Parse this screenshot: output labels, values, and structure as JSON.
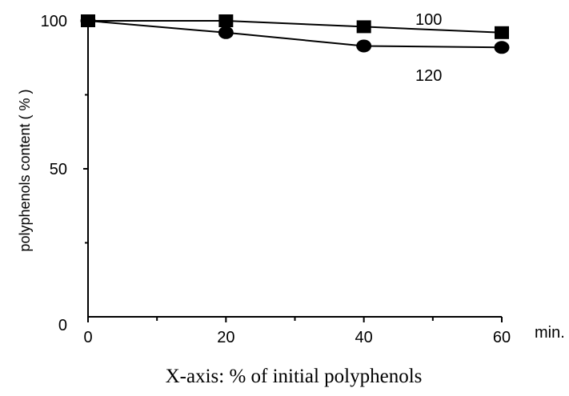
{
  "chart_data": {
    "type": "line",
    "xlabel": "X-axis: % of initial polyphenols",
    "x_unit": "min.",
    "ylabel": "polyphenols content ( % )",
    "x": [
      0,
      20,
      40,
      60
    ],
    "xlim": [
      0,
      60
    ],
    "ylim": [
      0,
      100
    ],
    "x_ticks": [
      "0",
      "20",
      "40",
      "60"
    ],
    "y_ticks": [
      "0",
      "50",
      "100"
    ],
    "series": [
      {
        "name": "100",
        "marker": "square",
        "color": "#000000",
        "values": [
          100,
          100,
          98,
          96
        ]
      },
      {
        "name": "120",
        "marker": "circle",
        "color": "#000000",
        "values": [
          100,
          96,
          91.5,
          91
        ]
      }
    ],
    "grid": false
  }
}
